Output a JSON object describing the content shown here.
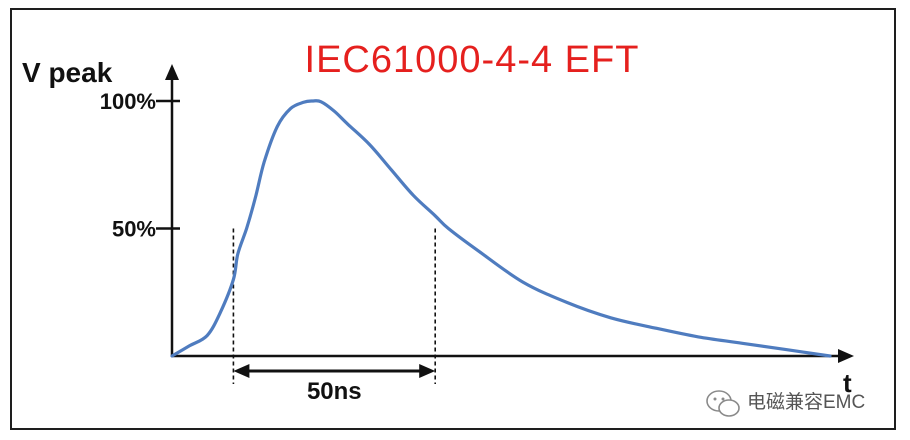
{
  "chart_data": {
    "type": "line",
    "title": "IEC61000-4-4 EFT",
    "ylabel": "V peak",
    "xlabel": "t",
    "ylim": [
      0,
      100
    ],
    "xlim": [
      0,
      150
    ],
    "yticks": [
      {
        "value": 100,
        "label": "100%"
      },
      {
        "value": 50,
        "label": "50%"
      }
    ],
    "series": [
      {
        "color": "#4f7cbf",
        "x": [
          0,
          4,
          8,
          11,
          14,
          15,
          17,
          19,
          21,
          24,
          27,
          30,
          32,
          34,
          37,
          40,
          45,
          50,
          55,
          60,
          63,
          70,
          80,
          90,
          100,
          110,
          120,
          130,
          140,
          150
        ],
        "y": [
          0,
          4,
          8,
          17,
          30,
          40,
          50,
          62,
          76,
          90,
          97,
          99.5,
          100,
          99.7,
          96,
          91,
          83,
          73,
          63,
          55,
          50,
          41,
          29,
          21,
          15,
          11,
          7.5,
          5,
          2.5,
          0
        ]
      }
    ],
    "markers": [
      {
        "x": 14,
        "label_y": 50
      },
      {
        "x": 60,
        "label_y": 50
      }
    ],
    "annotation": {
      "from": 14,
      "to": 60,
      "label": "50ns"
    },
    "grid": false,
    "legend": "none"
  },
  "watermark": {
    "text": "电磁兼容EMC",
    "icon": "wechat-icon"
  }
}
